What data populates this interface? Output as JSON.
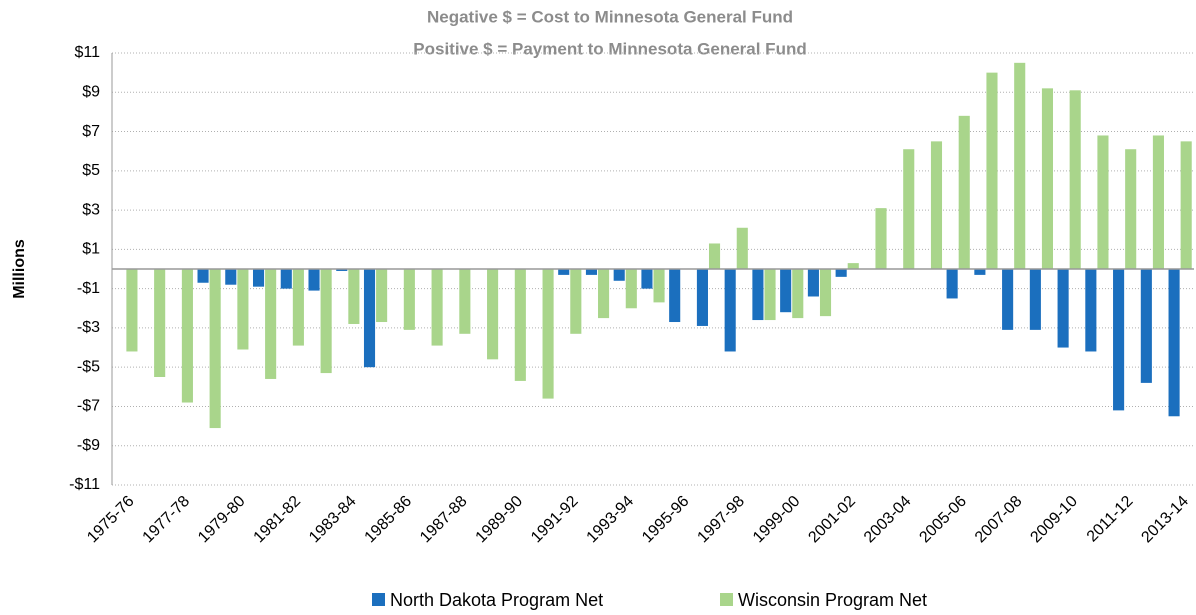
{
  "chart_data": {
    "type": "bar",
    "title": "Negative $ = Cost to Minnesota General Fund",
    "subtitle": "Positive $ = Payment to Minnesota General Fund",
    "y_label": "Millions",
    "categories": [
      "1975-76",
      null,
      "1977-78",
      null,
      "1979-80",
      null,
      "1981-82",
      null,
      "1983-84",
      null,
      "1985-86",
      null,
      "1987-88",
      null,
      "1989-90",
      null,
      "1991-92",
      null,
      "1993-94",
      null,
      "1995-96",
      null,
      "1997-98",
      null,
      "1999-00",
      null,
      "2001-02",
      null,
      "2003-04",
      null,
      "2005-06",
      null,
      "2007-08",
      null,
      "2009-10",
      null,
      "2011-12",
      null,
      "2013-14"
    ],
    "series": [
      {
        "name": "North Dakota Program Net",
        "color": "#1b6fbe",
        "values": [
          0,
          0,
          0,
          -0.7,
          -0.8,
          -0.9,
          -1.0,
          -1.1,
          -0.1,
          -5.0,
          0,
          0,
          0,
          0,
          0,
          0,
          -0.3,
          -0.3,
          -0.6,
          -1.0,
          -2.7,
          -2.9,
          -4.2,
          -2.6,
          -2.2,
          -1.4,
          -0.4,
          0,
          0,
          0,
          -1.5,
          -0.3,
          -3.1,
          -3.1,
          -4.0,
          -4.2,
          -7.2,
          -5.8,
          -7.5
        ]
      },
      {
        "name": "Wisconsin Program Net",
        "color": "#a9d58b",
        "values": [
          -4.2,
          -5.5,
          -6.8,
          -8.1,
          -4.1,
          -5.6,
          -3.9,
          -5.3,
          -2.8,
          -2.7,
          -3.1,
          -3.9,
          -3.3,
          -4.6,
          -5.7,
          -6.6,
          -3.3,
          -2.5,
          -2.0,
          -1.7,
          0,
          1.3,
          2.1,
          -2.6,
          -2.5,
          -2.4,
          0.3,
          3.1,
          6.1,
          6.5,
          7.8,
          10.0,
          10.5,
          9.2,
          9.1,
          6.8,
          6.1,
          6.8,
          6.5
        ]
      }
    ],
    "ylim": [
      -11,
      11
    ],
    "yticks": [
      {
        "value": -11,
        "label": "-$11"
      },
      {
        "value": -9,
        "label": "-$9"
      },
      {
        "value": -7,
        "label": "-$7"
      },
      {
        "value": -5,
        "label": "-$5"
      },
      {
        "value": -3,
        "label": "-$3"
      },
      {
        "value": -1,
        "label": "-$1"
      },
      {
        "value": 1,
        "label": "$1"
      },
      {
        "value": 3,
        "label": "$3"
      },
      {
        "value": 5,
        "label": "$5"
      },
      {
        "value": 7,
        "label": "$7"
      },
      {
        "value": 9,
        "label": "$9"
      },
      {
        "value": 11,
        "label": "$11"
      }
    ],
    "grid": true
  }
}
